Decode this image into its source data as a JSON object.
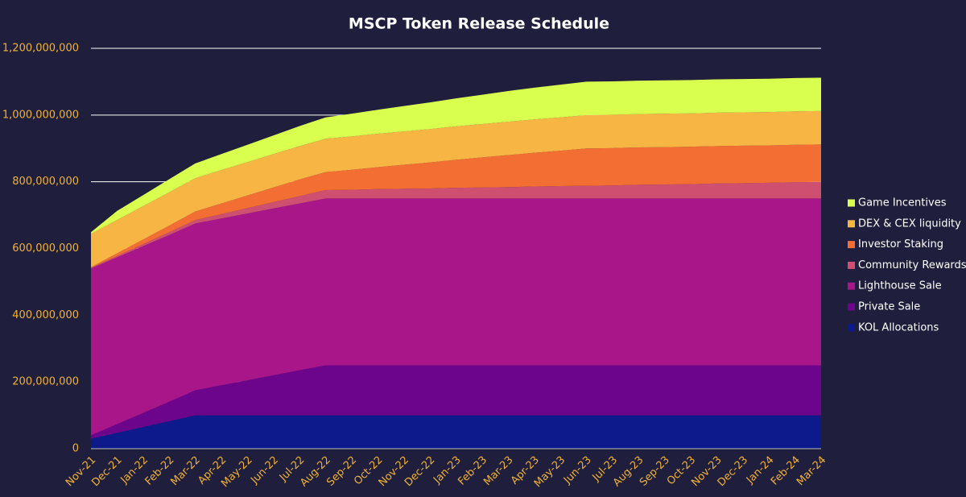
{
  "chart_data": {
    "type": "stacked_area",
    "title": "MSCP Token Release Schedule",
    "categories": [
      "Nov-21",
      "Dec-21",
      "Jan-22",
      "Feb-22",
      "Mar-22",
      "Apr-22",
      "May-22",
      "Jun-22",
      "Jul-22",
      "Aug-22",
      "Sep-22",
      "Oct-22",
      "Nov-22",
      "Dec-22",
      "Jan-23",
      "Feb-23",
      "Mar-23",
      "Apr-23",
      "May-23",
      "Jun-23",
      "Jul-23",
      "Aug-23",
      "Sep-23",
      "Oct-23",
      "Nov-23",
      "Dec-23",
      "Jan-24",
      "Feb-24",
      "Mar-24"
    ],
    "series": [
      {
        "name": "KOL Allocations",
        "color": "#0c1a8c",
        "values": [
          30000000,
          47500000,
          65000000,
          82500000,
          100000000,
          100000000,
          100000000,
          100000000,
          100000000,
          100000000,
          100000000,
          100000000,
          100000000,
          100000000,
          100000000,
          100000000,
          100000000,
          100000000,
          100000000,
          100000000,
          100000000,
          100000000,
          100000000,
          100000000,
          100000000,
          100000000,
          100000000,
          100000000,
          100000000
        ]
      },
      {
        "name": "Private Sale",
        "color": "#6c058c",
        "values": [
          10000000,
          26000000,
          42000000,
          58000000,
          75000000,
          90000000,
          105000000,
          120000000,
          135000000,
          150000000,
          150000000,
          150000000,
          150000000,
          150000000,
          150000000,
          150000000,
          150000000,
          150000000,
          150000000,
          150000000,
          150000000,
          150000000,
          150000000,
          150000000,
          150000000,
          150000000,
          150000000,
          150000000,
          150000000
        ]
      },
      {
        "name": "Lighthouse Sale",
        "color": "#a8168a",
        "values": [
          500000000,
          500000000,
          500000000,
          500000000,
          500000000,
          500000000,
          500000000,
          500000000,
          500000000,
          500000000,
          500000000,
          500000000,
          500000000,
          500000000,
          500000000,
          500000000,
          500000000,
          500000000,
          500000000,
          500000000,
          500000000,
          500000000,
          500000000,
          500000000,
          500000000,
          500000000,
          500000000,
          500000000,
          500000000
        ]
      },
      {
        "name": "Community Rewards",
        "color": "#cf4f70",
        "values": [
          2000000,
          4000000,
          6000000,
          8000000,
          10000000,
          13000000,
          16000000,
          19000000,
          22000000,
          25000000,
          26000000,
          28000000,
          29000000,
          30000000,
          32000000,
          33000000,
          34000000,
          36000000,
          37000000,
          38000000,
          39000000,
          41000000,
          42000000,
          43000000,
          45000000,
          46000000,
          47000000,
          49000000,
          50000000
        ]
      },
      {
        "name": "Investor Staking",
        "color": "#f26e32",
        "values": [
          2000000,
          8000000,
          14000000,
          20000000,
          26000000,
          32000000,
          38000000,
          44000000,
          50000000,
          54000000,
          60000000,
          66000000,
          72000000,
          78000000,
          84000000,
          90000000,
          96000000,
          101000000,
          106000000,
          112000000,
          112000000,
          112000000,
          112000000,
          112000000,
          112000000,
          112000000,
          112000000,
          112000000,
          112000000
        ]
      },
      {
        "name": "DEX & CEX liquidity",
        "color": "#f7b544",
        "values": [
          100000000,
          100000000,
          100000000,
          100000000,
          100000000,
          100000000,
          100000000,
          100000000,
          100000000,
          100000000,
          100000000,
          100000000,
          100000000,
          100000000,
          100000000,
          100000000,
          100000000,
          100000000,
          100000000,
          100000000,
          100000000,
          100000000,
          100000000,
          100000000,
          100000000,
          100000000,
          100000000,
          100000000,
          100000000
        ]
      },
      {
        "name": "Game Incentives",
        "color": "#d9ff4f",
        "values": [
          5000000,
          27000000,
          33000000,
          39000000,
          44000000,
          48000000,
          52000000,
          56000000,
          60000000,
          64000000,
          68000000,
          72000000,
          76000000,
          80000000,
          84000000,
          88000000,
          92000000,
          95000000,
          98000000,
          100000000,
          100000000,
          100000000,
          100000000,
          100000000,
          100000000,
          100000000,
          100000000,
          100000000,
          100000000
        ]
      }
    ],
    "ylim": [
      0,
      1200000000
    ],
    "yticks": [
      0,
      {
        "value": 200000000,
        "label": "200,000,000"
      },
      {
        "value": 400000000,
        "label": "400,000,000"
      },
      {
        "value": 600000000,
        "label": "600,000,000"
      },
      {
        "value": 800000000,
        "label": "800,000,000"
      },
      {
        "value": 1000000000,
        "label": "1,000,000,000"
      },
      {
        "value": 1200000000,
        "label": "1,200,000,000"
      }
    ],
    "grid": true,
    "legend": "right"
  }
}
